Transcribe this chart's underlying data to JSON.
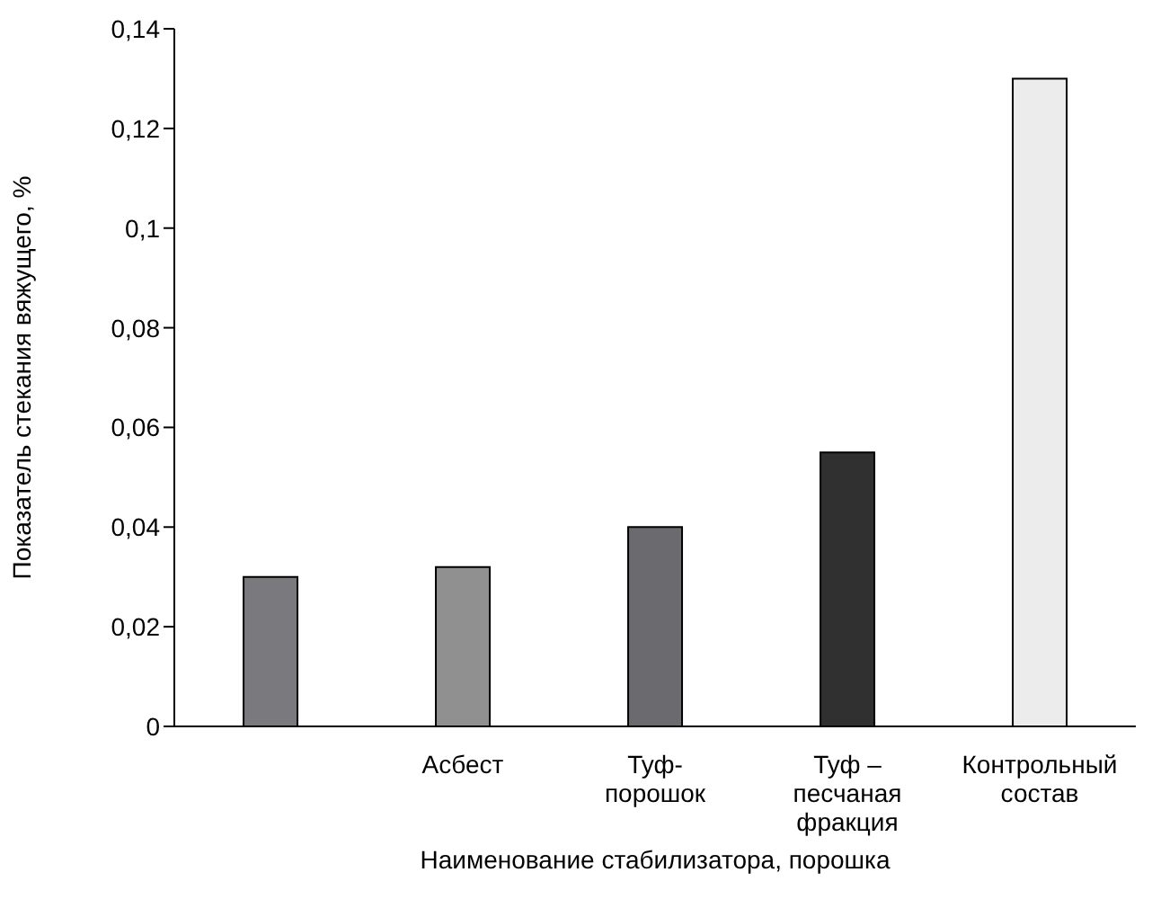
{
  "chart_data": {
    "type": "bar",
    "xlabel": "Наименование стабилизатора, порошка",
    "ylabel": "Показатель стекания вяжущего, %",
    "categories": [
      null,
      "Асбест",
      "Туф-\nпорошок",
      "Туф –\nпесчаная\nфракция",
      "Контрольный\nсостав"
    ],
    "values": [
      0.03,
      0.032,
      0.04,
      0.055,
      0.13
    ],
    "colors": [
      "#7a7a7e",
      "#909090",
      "#6b6b6f",
      "#303030",
      "#ececec"
    ],
    "ylim": [
      0,
      0.14
    ],
    "yticks": [
      0,
      {
        "value": 0.02,
        "label": "0,02"
      },
      {
        "value": 0.04,
        "label": "0,04"
      },
      {
        "value": 0.06,
        "label": "0,06"
      },
      {
        "value": 0.08,
        "label": "0,08"
      },
      {
        "value": 0.1,
        "label": "0,1"
      },
      {
        "value": 0.12,
        "label": "0,12"
      },
      {
        "value": 0.14,
        "label": "0,14"
      }
    ],
    "grid": false,
    "legend": false
  }
}
